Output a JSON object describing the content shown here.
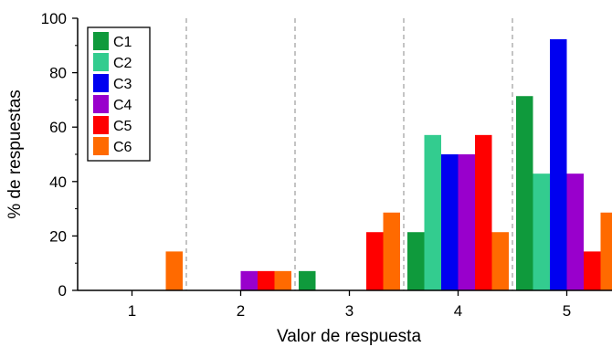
{
  "chart_data": {
    "type": "bar",
    "xlabel": "Valor de respuesta",
    "ylabel": "% de respuestas",
    "ylim": [
      0,
      100
    ],
    "yticks": [
      0,
      20,
      40,
      60,
      80,
      100
    ],
    "categories": [
      "1",
      "2",
      "3",
      "4",
      "5"
    ],
    "grid": "vertical dashed separators between categories",
    "legend_position": "top-left",
    "series": [
      {
        "name": "C1",
        "color": "#0f9a3c",
        "values": [
          0,
          0,
          7.1,
          21.4,
          71.4
        ]
      },
      {
        "name": "C2",
        "color": "#33cc8f",
        "values": [
          0,
          0,
          0,
          57.1,
          42.9
        ]
      },
      {
        "name": "C3",
        "color": "#0000f0",
        "values": [
          0,
          0,
          0,
          50,
          92.3
        ]
      },
      {
        "name": "C4",
        "color": "#9900cc",
        "values": [
          0,
          7.1,
          0,
          50,
          42.9
        ]
      },
      {
        "name": "C5",
        "color": "#ff0000",
        "values": [
          0,
          7.1,
          21.4,
          57.1,
          14.3
        ]
      },
      {
        "name": "C6",
        "color": "#ff6a00",
        "values": [
          14.3,
          7.1,
          28.6,
          21.4,
          28.6
        ]
      }
    ]
  }
}
